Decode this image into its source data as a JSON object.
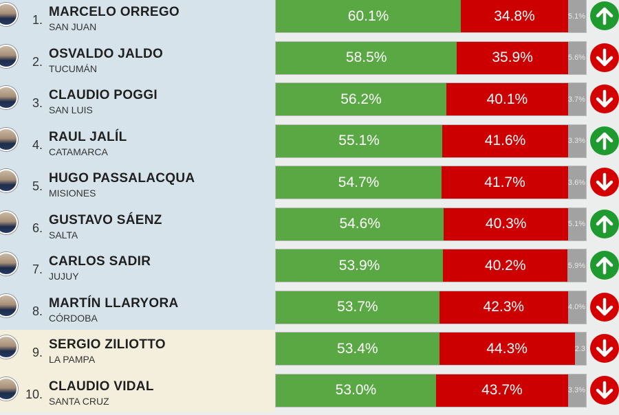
{
  "colors": {
    "approve": "#5aa844",
    "disapprove": "#cc0000",
    "other": "#a2a2a2",
    "up": "#1f9a2e",
    "down": "#d40000",
    "bg_blue": "#d6e3eb",
    "bg_beige": "#f3efdc"
  },
  "rows": [
    {
      "rank": "1.",
      "name": "MARCELO ORREGO",
      "province": "SAN JUAN",
      "approve": 60.1,
      "approve_label": "60.1%",
      "disapprove": 34.8,
      "disapprove_label": "34.8%",
      "other": 5.1,
      "other_label": "5.1%",
      "trend": "up"
    },
    {
      "rank": "2.",
      "name": "OSVALDO JALDO",
      "province": "TUCUMÁN",
      "approve": 58.5,
      "approve_label": "58.5%",
      "disapprove": 35.9,
      "disapprove_label": "35.9%",
      "other": 5.6,
      "other_label": "5.6%",
      "trend": "down"
    },
    {
      "rank": "3.",
      "name": "CLAUDIO POGGI",
      "province": "SAN LUIS",
      "approve": 56.2,
      "approve_label": "56.2%",
      "disapprove": 40.1,
      "disapprove_label": "40.1%",
      "other": 3.7,
      "other_label": "3.7%",
      "trend": "down"
    },
    {
      "rank": "4.",
      "name": "RAUL JALÍL",
      "province": "CATAMARCA",
      "approve": 55.1,
      "approve_label": "55.1%",
      "disapprove": 41.6,
      "disapprove_label": "41.6%",
      "other": 3.3,
      "other_label": "3.3%",
      "trend": "up"
    },
    {
      "rank": "5.",
      "name": "HUGO PASSALACQUA",
      "province": "MISIONES",
      "approve": 54.7,
      "approve_label": "54.7%",
      "disapprove": 41.7,
      "disapprove_label": "41.7%",
      "other": 3.6,
      "other_label": "3.6%",
      "trend": "down"
    },
    {
      "rank": "6.",
      "name": "GUSTAVO SÁENZ",
      "province": "SALTA",
      "approve": 54.6,
      "approve_label": "54.6%",
      "disapprove": 40.3,
      "disapprove_label": "40.3%",
      "other": 5.1,
      "other_label": "5.1%",
      "trend": "up"
    },
    {
      "rank": "7.",
      "name": "CARLOS SADIR",
      "province": "JUJUY",
      "approve": 53.9,
      "approve_label": "53.9%",
      "disapprove": 40.2,
      "disapprove_label": "40.2%",
      "other": 5.9,
      "other_label": "5.9%",
      "trend": "up"
    },
    {
      "rank": "8.",
      "name": "MARTÍN LLARYORA",
      "province": "CÓRDOBA",
      "approve": 53.7,
      "approve_label": "53.7%",
      "disapprove": 42.3,
      "disapprove_label": "42.3%",
      "other": 4.0,
      "other_label": "4.0%",
      "trend": "down"
    },
    {
      "rank": "9.",
      "name": "SERGIO ZILIOTTO",
      "province": "LA PAMPA",
      "approve": 53.4,
      "approve_label": "53.4%",
      "disapprove": 44.3,
      "disapprove_label": "44.3%",
      "other": 2.3,
      "other_label": "2.3",
      "trend": "down"
    },
    {
      "rank": "10.",
      "name": "CLAUDIO VIDAL",
      "province": "SANTA CRUZ",
      "approve": 53.0,
      "approve_label": "53.0%",
      "disapprove": 43.7,
      "disapprove_label": "43.7%",
      "other": 3.3,
      "other_label": "3.3%",
      "trend": "down"
    }
  ]
}
